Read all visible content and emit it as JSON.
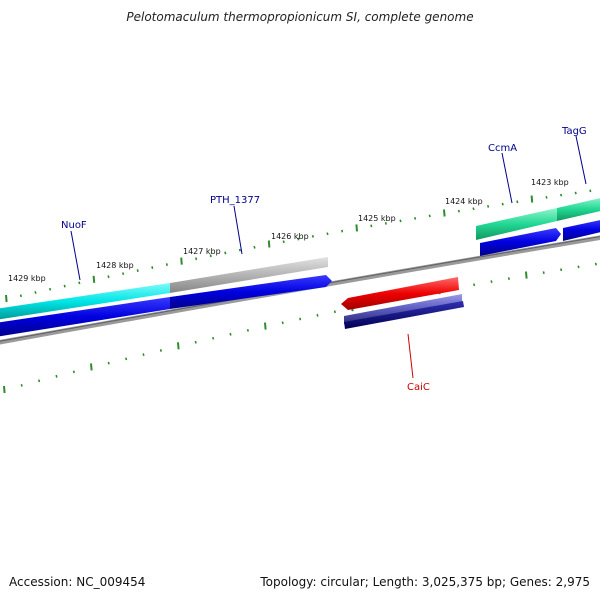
{
  "title": "Pelotomaculum thermopropionicum SI, complete genome",
  "footer": {
    "accession": "Accession: NC_009454",
    "summary": "Topology: circular; Length: 3,025,375 bp; Genes: 2,975"
  },
  "ticks": [
    {
      "label": "1429 kbp",
      "kbp": 1429
    },
    {
      "label": "1428 kbp",
      "kbp": 1428
    },
    {
      "label": "1427 kbp",
      "kbp": 1427
    },
    {
      "label": "1426 kbp",
      "kbp": 1426
    },
    {
      "label": "1425 kbp",
      "kbp": 1425
    },
    {
      "label": "1424 kbp",
      "kbp": 1424
    },
    {
      "label": "1423 kbp",
      "kbp": 1423
    }
  ],
  "genes": [
    {
      "name": "NuoF",
      "color": "#00008b",
      "feature_color": "#00e5e5",
      "strand": "+"
    },
    {
      "name": "PTH_1377",
      "color": "#00008b",
      "feature_color": "#b0b0b0",
      "strand": "+"
    },
    {
      "name": "CcmA",
      "color": "#00008b",
      "feature_color": "#20d890",
      "strand": "+"
    },
    {
      "name": "TagG",
      "color": "#00008b",
      "feature_color": "#20d890",
      "strand": "+"
    },
    {
      "name": "CaiC",
      "color": "#cc0000",
      "feature_color": "#dd0000",
      "strand": "-"
    }
  ],
  "colors": {
    "backbone": "#777777",
    "ticks": "#2e8b2e",
    "cds_forward": "#0000dd",
    "cds_reverse": "#5555bb"
  }
}
